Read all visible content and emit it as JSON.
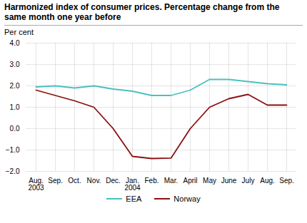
{
  "chart_data": {
    "type": "line",
    "title": "Harmonized index of consumer prices. Percentage change from the\nsame month one year before",
    "ylabel": "Per cent",
    "categories": [
      "Aug.\n2003",
      "Sep.",
      "Oct.",
      "Nov.",
      "Dec.",
      "Jan.\n2004",
      "Feb.",
      "Mar.",
      "April",
      "May",
      "June",
      "July",
      "Aug.",
      "Sep."
    ],
    "series": [
      {
        "name": "EEA",
        "color": "#4BBFBF",
        "values": [
          1.95,
          2.0,
          1.9,
          2.0,
          1.85,
          1.75,
          1.55,
          1.55,
          1.8,
          2.3,
          2.3,
          2.2,
          2.1,
          2.05
        ]
      },
      {
        "name": "Norway",
        "color": "#8B1010",
        "values": [
          1.8,
          1.55,
          1.3,
          1.0,
          0.0,
          -1.3,
          -1.4,
          -1.38,
          0.0,
          1.0,
          1.4,
          1.6,
          1.1,
          1.1
        ]
      }
    ],
    "ylim": [
      -2,
      4
    ],
    "yticks": [
      -2,
      -1,
      0,
      1,
      2,
      3,
      4
    ],
    "grid": true,
    "legend": "bottom"
  }
}
